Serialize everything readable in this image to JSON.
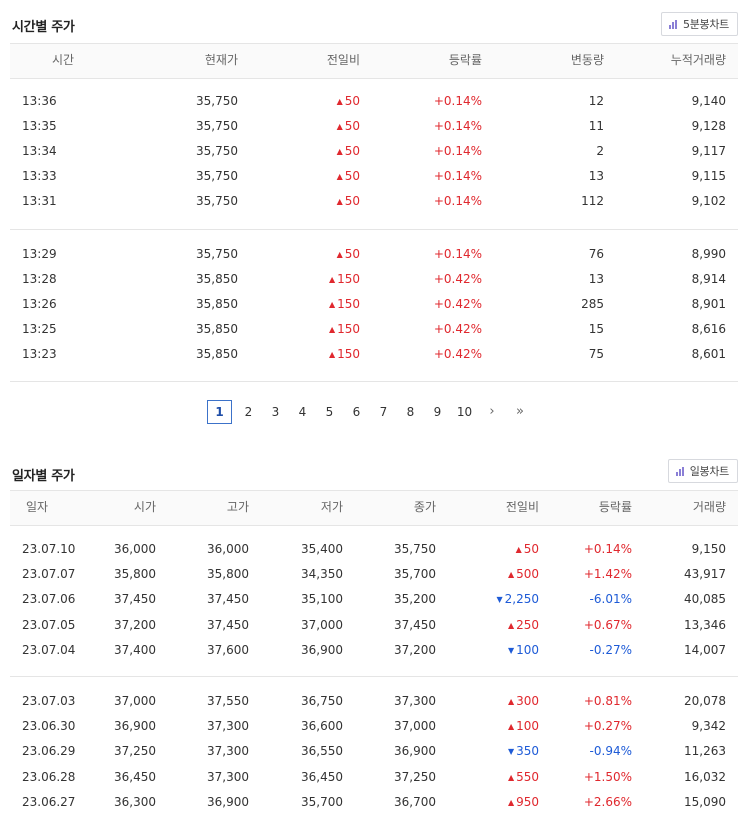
{
  "time_section": {
    "title": "시간별 주가",
    "chart_button": "5분봉차트",
    "headers": [
      "시간",
      "현재가",
      "전일비",
      "등락률",
      "변동량",
      "누적거래량"
    ],
    "groups": [
      [
        {
          "time": "13:36",
          "price": "35,750",
          "dir": "up",
          "change": "50",
          "rate": "+0.14%",
          "vol_change": "12",
          "cum_vol": "9,140"
        },
        {
          "time": "13:35",
          "price": "35,750",
          "dir": "up",
          "change": "50",
          "rate": "+0.14%",
          "vol_change": "11",
          "cum_vol": "9,128"
        },
        {
          "time": "13:34",
          "price": "35,750",
          "dir": "up",
          "change": "50",
          "rate": "+0.14%",
          "vol_change": "2",
          "cum_vol": "9,117"
        },
        {
          "time": "13:33",
          "price": "35,750",
          "dir": "up",
          "change": "50",
          "rate": "+0.14%",
          "vol_change": "13",
          "cum_vol": "9,115"
        },
        {
          "time": "13:31",
          "price": "35,750",
          "dir": "up",
          "change": "50",
          "rate": "+0.14%",
          "vol_change": "112",
          "cum_vol": "9,102"
        }
      ],
      [
        {
          "time": "13:29",
          "price": "35,750",
          "dir": "up",
          "change": "50",
          "rate": "+0.14%",
          "vol_change": "76",
          "cum_vol": "8,990"
        },
        {
          "time": "13:28",
          "price": "35,850",
          "dir": "up",
          "change": "150",
          "rate": "+0.42%",
          "vol_change": "13",
          "cum_vol": "8,914"
        },
        {
          "time": "13:26",
          "price": "35,850",
          "dir": "up",
          "change": "150",
          "rate": "+0.42%",
          "vol_change": "285",
          "cum_vol": "8,901"
        },
        {
          "time": "13:25",
          "price": "35,850",
          "dir": "up",
          "change": "150",
          "rate": "+0.42%",
          "vol_change": "15",
          "cum_vol": "8,616"
        },
        {
          "time": "13:23",
          "price": "35,850",
          "dir": "up",
          "change": "150",
          "rate": "+0.42%",
          "vol_change": "75",
          "cum_vol": "8,601"
        }
      ]
    ]
  },
  "pagination": {
    "current": "1",
    "pages": [
      "2",
      "3",
      "4",
      "5",
      "6",
      "7",
      "8",
      "9",
      "10"
    ],
    "next_icon": "chevron-right-icon",
    "last_icon": "double-chevron-right-icon"
  },
  "daily_section": {
    "title": "일자별 주가",
    "chart_button": "일봉차트",
    "headers": [
      "일자",
      "시가",
      "고가",
      "저가",
      "종가",
      "전일비",
      "등락률",
      "거래량"
    ],
    "groups": [
      [
        {
          "date": "23.07.10",
          "open": "36,000",
          "high": "36,000",
          "low": "35,400",
          "close": "35,750",
          "dir": "up",
          "change": "50",
          "rate": "+0.14%",
          "volume": "9,150"
        },
        {
          "date": "23.07.07",
          "open": "35,800",
          "high": "35,800",
          "low": "34,350",
          "close": "35,700",
          "dir": "up",
          "change": "500",
          "rate": "+1.42%",
          "volume": "43,917"
        },
        {
          "date": "23.07.06",
          "open": "37,450",
          "high": "37,450",
          "low": "35,100",
          "close": "35,200",
          "dir": "down",
          "change": "2,250",
          "rate": "-6.01%",
          "volume": "40,085"
        },
        {
          "date": "23.07.05",
          "open": "37,200",
          "high": "37,450",
          "low": "37,000",
          "close": "37,450",
          "dir": "up",
          "change": "250",
          "rate": "+0.67%",
          "volume": "13,346"
        },
        {
          "date": "23.07.04",
          "open": "37,400",
          "high": "37,600",
          "low": "36,900",
          "close": "37,200",
          "dir": "down",
          "change": "100",
          "rate": "-0.27%",
          "volume": "14,007"
        }
      ],
      [
        {
          "date": "23.07.03",
          "open": "37,000",
          "high": "37,550",
          "low": "36,750",
          "close": "37,300",
          "dir": "up",
          "change": "300",
          "rate": "+0.81%",
          "volume": "20,078"
        },
        {
          "date": "23.06.30",
          "open": "36,900",
          "high": "37,300",
          "low": "36,600",
          "close": "37,000",
          "dir": "up",
          "change": "100",
          "rate": "+0.27%",
          "volume": "9,342"
        },
        {
          "date": "23.06.29",
          "open": "37,250",
          "high": "37,300",
          "low": "36,550",
          "close": "36,900",
          "dir": "down",
          "change": "350",
          "rate": "-0.94%",
          "volume": "11,263"
        },
        {
          "date": "23.06.28",
          "open": "36,450",
          "high": "37,300",
          "low": "36,450",
          "close": "37,250",
          "dir": "up",
          "change": "550",
          "rate": "+1.50%",
          "volume": "16,032"
        },
        {
          "date": "23.06.27",
          "open": "36,300",
          "high": "36,900",
          "low": "35,700",
          "close": "36,700",
          "dir": "up",
          "change": "950",
          "rate": "+2.66%",
          "volume": "15,090"
        }
      ]
    ]
  },
  "colors": {
    "up": "#e0282e",
    "down": "#1e5bd7",
    "accent": "#3c72c9",
    "icon": "#8a7fd6"
  }
}
